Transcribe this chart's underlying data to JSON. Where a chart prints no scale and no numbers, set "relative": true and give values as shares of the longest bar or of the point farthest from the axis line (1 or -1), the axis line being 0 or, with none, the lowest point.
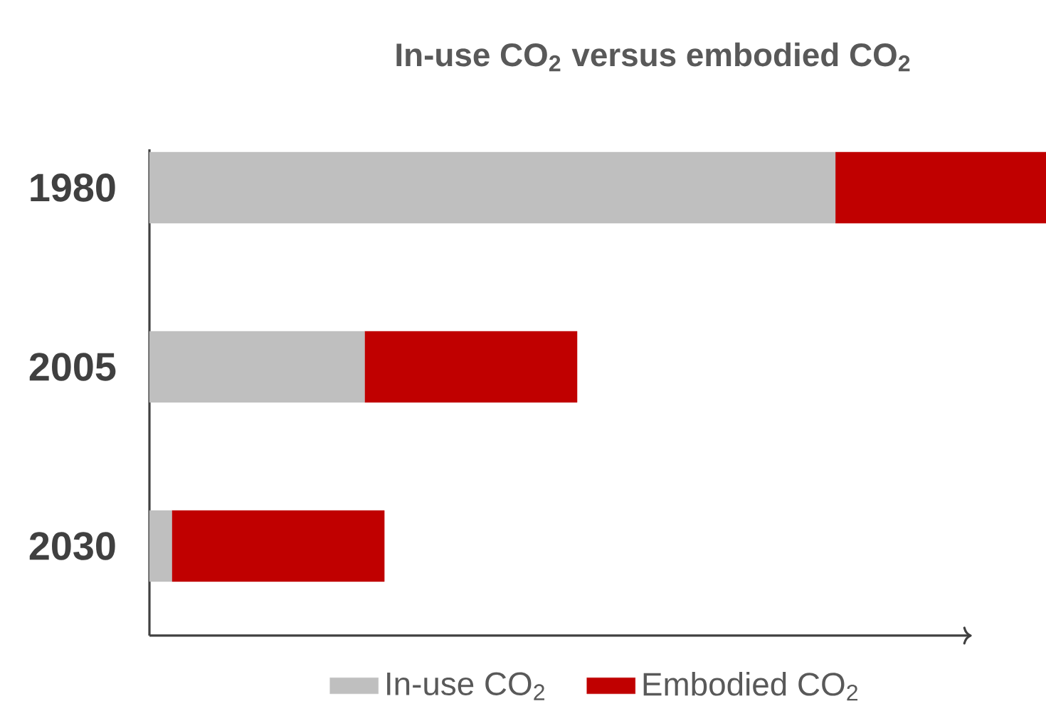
{
  "chart_data": {
    "type": "bar",
    "orientation": "horizontal",
    "stacked": true,
    "relative": true,
    "title": "In-use CO$_{2}$ versus embodied CO$_{2}$",
    "categories": [
      "1980",
      "2005",
      "2030"
    ],
    "legend": "bottom",
    "series": [
      {
        "name": "In-use CO$_{2}$",
        "color": "#bfbfbf",
        "values": [
          0.765,
          0.24,
          0.025
        ]
      },
      {
        "name": "Embodied CO$_{2}$",
        "color": "#c00000",
        "values": [
          0.235,
          0.237,
          0.237
        ]
      }
    ]
  }
}
